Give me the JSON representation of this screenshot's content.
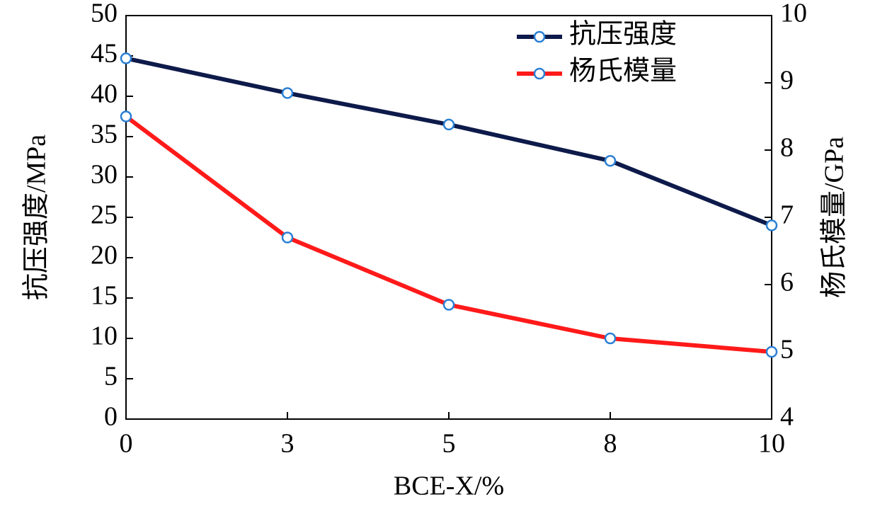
{
  "chart_data": {
    "type": "line",
    "x_label": "BCE-X/%",
    "y_label": "抗压强度/MPa",
    "y2_label": "杨氏模量/GPa",
    "categories": [
      "0",
      "3",
      "5",
      "8",
      "10"
    ],
    "ylim": [
      0,
      50
    ],
    "yticks": [
      0,
      5,
      10,
      15,
      20,
      25,
      30,
      35,
      40,
      45,
      50
    ],
    "y2lim": [
      4,
      10
    ],
    "y2ticks": [
      4,
      5,
      6,
      7,
      8,
      9,
      10
    ],
    "legend": "top-right",
    "marker_color": "#2a7fd4",
    "series": [
      {
        "name": "抗压强度",
        "color": "#0d1a4a",
        "values": [
          44.7,
          40.4,
          36.5,
          32.0,
          24.0
        ]
      },
      {
        "name": "杨氏模量",
        "color": "#ff1a1a",
        "axis": "y2",
        "values": [
          8.5,
          6.7,
          5.7,
          5.2,
          5.0
        ]
      }
    ]
  }
}
